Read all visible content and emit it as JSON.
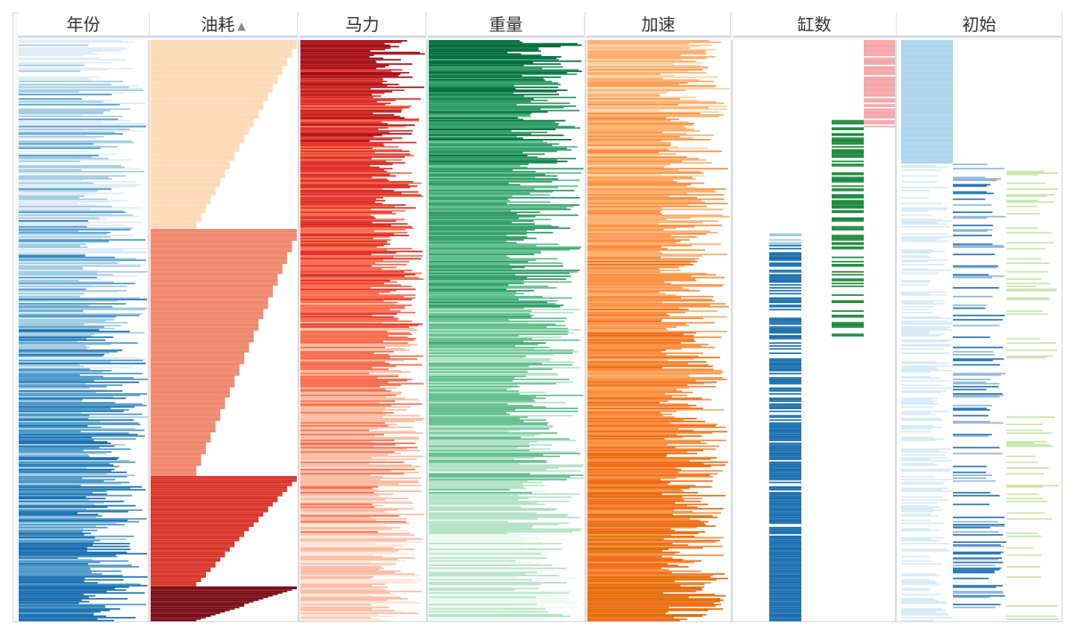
{
  "columns": [
    {
      "key": "year",
      "label": "年份",
      "sorted": false
    },
    {
      "key": "mpg",
      "label": "油耗",
      "sorted": true,
      "sort_icon": "sort-descending-icon"
    },
    {
      "key": "horsepower",
      "label": "马力",
      "sorted": false
    },
    {
      "key": "weight",
      "label": "重量",
      "sorted": false
    },
    {
      "key": "acceleration",
      "label": "加速",
      "sorted": false
    },
    {
      "key": "cylinders",
      "label": "缸数",
      "sorted": false
    },
    {
      "key": "origin",
      "label": "初始",
      "sorted": false
    }
  ],
  "colors": {
    "year": [
      "#ffffff",
      "#deebf7",
      "#9ecae1",
      "#4a98c9",
      "#1a6fb0"
    ],
    "mpg": [
      "#fdd9b4",
      "#f0866a",
      "#d9352a",
      "#7a0d15"
    ],
    "horsepower": [
      "#fee5d9",
      "#fcbba1",
      "#fb6a4a",
      "#de2d26",
      "#a50f15"
    ],
    "weight": [
      "#edf8f1",
      "#b2e2c5",
      "#5fbf8c",
      "#2a9a63",
      "#006d3c"
    ],
    "acceleration": [
      "#fdd0a2",
      "#fdae6b",
      "#fd8d3c",
      "#f16913",
      "#e07000"
    ],
    "cylinders": [
      "#1a6fb0",
      "#9ecae1",
      "#1a8a3c",
      "#f4a6a8"
    ],
    "origin": [
      "#a9d4ec",
      "#2874b5",
      "#c7e6a8"
    ]
  },
  "chart_data": {
    "type": "table",
    "title": "",
    "row_count": 400,
    "sorted_by": "油耗",
    "sort_order": "descending",
    "mpg_band_rows": [
      130,
      300,
      376
    ],
    "cylinders_lanes": [
      "4",
      "5/6",
      "8"
    ],
    "origin_lanes": [
      "1",
      "2",
      "3"
    ]
  }
}
